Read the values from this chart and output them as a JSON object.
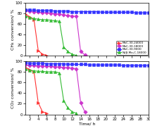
{
  "title_top": "CH₄ conversion/ %",
  "title_bottom": "CO₂ conversion/ %",
  "xlabel": "Time/ h",
  "xlim": [
    1,
    30
  ],
  "ylim": [
    0,
    100
  ],
  "xticks": [
    2,
    4,
    6,
    8,
    10,
    12,
    14,
    16,
    18,
    20,
    22,
    24,
    26,
    28,
    30
  ],
  "yticks": [
    0,
    20,
    40,
    60,
    80,
    100
  ],
  "legend_labels": [
    "MoC-30-24000",
    "MoC-30-18000",
    "MoC-30-9000",
    "Ni/β-Mo₂C-18000"
  ],
  "series": {
    "MoC-30-24000": {
      "color": "#ff3333",
      "marker": ">",
      "markersize": 3.0,
      "ch4_x": [
        1,
        2,
        3,
        4,
        5,
        6
      ],
      "ch4_y": [
        78,
        73,
        68,
        10,
        3,
        1
      ],
      "co2_x": [
        1,
        2,
        3,
        4,
        5,
        6
      ],
      "co2_y": [
        88,
        84,
        80,
        22,
        5,
        2
      ]
    },
    "MoC-30-18000": {
      "color": "#cc33cc",
      "marker": "D",
      "markersize": 2.8,
      "ch4_x": [
        1,
        2,
        3,
        4,
        5,
        6,
        7,
        8,
        9,
        10,
        11,
        12,
        13,
        14,
        15
      ],
      "ch4_y": [
        85,
        84,
        83,
        82,
        81,
        81,
        80,
        79,
        78,
        77,
        76,
        75,
        74,
        8,
        2
      ],
      "co2_x": [
        1,
        2,
        3,
        4,
        5,
        6,
        7,
        8,
        9,
        10,
        11,
        12,
        13,
        14,
        15
      ],
      "co2_y": [
        93,
        92,
        92,
        91,
        91,
        90,
        90,
        89,
        89,
        88,
        88,
        87,
        86,
        22,
        5
      ]
    },
    "MoC-30-9000": {
      "color": "#3333ff",
      "marker": "s",
      "markersize": 2.8,
      "ch4_x": [
        1,
        2,
        3,
        4,
        5,
        6,
        7,
        8,
        9,
        10,
        11,
        12,
        13,
        14,
        15,
        16,
        17,
        18,
        19,
        20,
        21,
        22,
        23,
        24,
        25,
        26,
        27,
        28,
        29,
        30
      ],
      "ch4_y": [
        87,
        86,
        86,
        85,
        85,
        85,
        85,
        84,
        84,
        84,
        84,
        83,
        83,
        83,
        83,
        83,
        83,
        83,
        82,
        82,
        82,
        82,
        82,
        82,
        82,
        82,
        81,
        81,
        81,
        81
      ],
      "co2_x": [
        1,
        2,
        3,
        4,
        5,
        6,
        7,
        8,
        9,
        10,
        11,
        12,
        13,
        14,
        15,
        16,
        17,
        18,
        19,
        20,
        21,
        22,
        23,
        24,
        25,
        26,
        27,
        28,
        29,
        30
      ],
      "co2_y": [
        97,
        96,
        96,
        96,
        96,
        95,
        95,
        95,
        95,
        95,
        94,
        94,
        94,
        94,
        94,
        93,
        93,
        93,
        93,
        93,
        93,
        93,
        93,
        92,
        92,
        92,
        92,
        92,
        92,
        92
      ]
    },
    "Ni/b-Mo2C-18000": {
      "color": "#33bb33",
      "marker": "^",
      "markersize": 3.0,
      "ch4_x": [
        1,
        2,
        3,
        4,
        5,
        6,
        7,
        8,
        9,
        10,
        11,
        12,
        13
      ],
      "ch4_y": [
        75,
        72,
        70,
        69,
        68,
        68,
        67,
        66,
        65,
        17,
        8,
        3,
        1
      ],
      "co2_x": [
        1,
        2,
        3,
        4,
        5,
        6,
        7,
        8,
        9,
        10,
        11,
        12,
        13
      ],
      "co2_y": [
        85,
        83,
        82,
        81,
        81,
        80,
        80,
        80,
        78,
        26,
        12,
        5,
        2
      ]
    }
  }
}
